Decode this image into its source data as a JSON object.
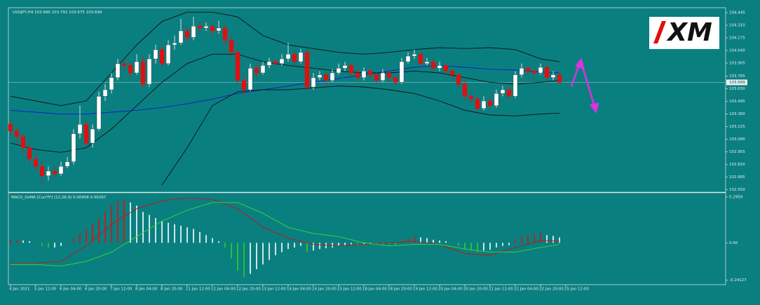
{
  "chart_data": {
    "type": "candlestick",
    "title": "USDJPY,H4",
    "header_values": [
      103.686,
      103.792,
      103.675,
      103.699
    ],
    "logo": "XM",
    "ylim": [
      102.54,
      104.49
    ],
    "yticks": [
      104.445,
      {
        "value": 104.31,
        "label": "104.310"
      },
      104.175,
      {
        "value": 104.04,
        "label": "104.040"
      },
      103.905,
      103.765,
      {
        "value": 103.63,
        "label": "103.630"
      },
      103.495,
      {
        "value": 103.36,
        "label": "103.360"
      },
      103.225,
      {
        "value": 103.09,
        "label": "103.090"
      },
      102.955,
      {
        "value": 102.82,
        "label": "102.820"
      },
      102.685,
      {
        "value": 102.55,
        "label": "102.550"
      }
    ],
    "last_price": 103.699,
    "up_color": "#ffffff",
    "down_color": "#e01010",
    "ohlc": [
      [
        103.25,
        103.3,
        103.12,
        103.18
      ],
      [
        103.18,
        103.22,
        103.05,
        103.12
      ],
      [
        103.12,
        103.15,
        102.95,
        103.0
      ],
      [
        103.0,
        103.05,
        102.82,
        102.88
      ],
      [
        102.88,
        102.95,
        102.75,
        102.8
      ],
      [
        102.8,
        102.85,
        102.6,
        102.7
      ],
      [
        102.7,
        102.8,
        102.65,
        102.75
      ],
      [
        102.75,
        102.8,
        102.68,
        102.72
      ],
      [
        102.72,
        102.85,
        102.7,
        102.8
      ],
      [
        102.8,
        102.9,
        102.78,
        102.85
      ],
      [
        102.85,
        103.2,
        102.82,
        103.15
      ],
      [
        103.15,
        103.45,
        103.1,
        103.25
      ],
      [
        103.25,
        103.3,
        103.0,
        103.05
      ],
      [
        103.05,
        103.25,
        103.0,
        103.2
      ],
      [
        103.2,
        103.6,
        103.18,
        103.55
      ],
      [
        103.55,
        103.68,
        103.5,
        103.62
      ],
      [
        103.62,
        103.8,
        103.58,
        103.75
      ],
      [
        103.75,
        103.95,
        103.72,
        103.9
      ],
      [
        103.9,
        103.95,
        103.82,
        103.88
      ],
      [
        103.88,
        103.92,
        103.75,
        103.8
      ],
      [
        103.8,
        104.0,
        103.78,
        103.92
      ],
      [
        103.92,
        103.98,
        103.62,
        103.68
      ],
      [
        103.68,
        104.0,
        103.65,
        103.95
      ],
      [
        103.95,
        104.1,
        103.9,
        104.05
      ],
      [
        104.05,
        104.08,
        103.85,
        103.9
      ],
      [
        103.9,
        104.15,
        103.88,
        104.1
      ],
      [
        104.1,
        104.2,
        104.05,
        104.12
      ],
      [
        104.12,
        104.38,
        104.1,
        104.25
      ],
      [
        104.25,
        104.28,
        104.12,
        104.18
      ],
      [
        104.18,
        104.4,
        104.15,
        104.3
      ],
      [
        104.3,
        104.35,
        104.22,
        104.28
      ],
      [
        104.28,
        104.34,
        104.25,
        104.3
      ],
      [
        104.3,
        104.32,
        104.2,
        104.25
      ],
      [
        104.25,
        104.36,
        104.22,
        104.28
      ],
      [
        104.28,
        104.32,
        104.1,
        104.15
      ],
      [
        104.15,
        104.2,
        103.98,
        104.02
      ],
      [
        104.02,
        104.05,
        103.68,
        103.72
      ],
      [
        103.72,
        103.78,
        103.55,
        103.62
      ],
      [
        103.62,
        103.9,
        103.6,
        103.85
      ],
      [
        103.85,
        103.9,
        103.75,
        103.8
      ],
      [
        103.8,
        103.92,
        103.78,
        103.88
      ],
      [
        103.88,
        103.96,
        103.85,
        103.92
      ],
      [
        103.92,
        103.95,
        103.86,
        103.9
      ],
      [
        103.9,
        104.0,
        103.88,
        103.95
      ],
      [
        103.95,
        104.12,
        103.92,
        104.0
      ],
      [
        104.0,
        104.04,
        103.88,
        103.92
      ],
      [
        103.92,
        104.06,
        103.9,
        104.02
      ],
      [
        104.02,
        104.05,
        103.6,
        103.65
      ],
      [
        103.65,
        103.8,
        103.62,
        103.75
      ],
      [
        103.75,
        103.82,
        103.72,
        103.78
      ],
      [
        103.78,
        103.8,
        103.68,
        103.72
      ],
      [
        103.72,
        103.84,
        103.7,
        103.8
      ],
      [
        103.8,
        103.9,
        103.78,
        103.85
      ],
      [
        103.85,
        103.92,
        103.82,
        103.88
      ],
      [
        103.88,
        103.9,
        103.76,
        103.8
      ],
      [
        103.8,
        103.84,
        103.7,
        103.75
      ],
      [
        103.75,
        103.86,
        103.72,
        103.82
      ],
      [
        103.82,
        103.85,
        103.74,
        103.78
      ],
      [
        103.78,
        103.8,
        103.68,
        103.72
      ],
      [
        103.72,
        103.84,
        103.7,
        103.8
      ],
      [
        103.8,
        103.82,
        103.7,
        103.75
      ],
      [
        103.75,
        103.78,
        103.66,
        103.7
      ],
      [
        103.7,
        103.96,
        103.68,
        103.92
      ],
      [
        103.92,
        104.02,
        103.9,
        103.98
      ],
      [
        103.98,
        104.05,
        103.95,
        104.0
      ],
      [
        104.0,
        104.02,
        103.86,
        103.9
      ],
      [
        103.9,
        103.96,
        103.88,
        103.92
      ],
      [
        103.92,
        103.94,
        103.82,
        103.85
      ],
      [
        103.85,
        103.92,
        103.82,
        103.88
      ],
      [
        103.88,
        103.9,
        103.78,
        103.82
      ],
      [
        103.82,
        103.85,
        103.74,
        103.78
      ],
      [
        103.78,
        103.8,
        103.64,
        103.68
      ],
      [
        103.68,
        103.72,
        103.5,
        103.55
      ],
      [
        103.55,
        103.6,
        103.48,
        103.52
      ],
      [
        103.52,
        103.55,
        103.38,
        103.42
      ],
      [
        103.42,
        103.55,
        103.4,
        103.5
      ],
      [
        103.5,
        103.54,
        103.42,
        103.45
      ],
      [
        103.45,
        103.62,
        103.43,
        103.58
      ],
      [
        103.58,
        103.66,
        103.55,
        103.62
      ],
      [
        103.62,
        103.65,
        103.52,
        103.55
      ],
      [
        103.55,
        103.82,
        103.53,
        103.78
      ],
      [
        103.78,
        103.9,
        103.75,
        103.85
      ],
      [
        103.85,
        103.88,
        103.78,
        103.82
      ],
      [
        103.82,
        103.86,
        103.76,
        103.8
      ],
      [
        103.8,
        103.9,
        103.78,
        103.86
      ],
      [
        103.86,
        103.88,
        103.72,
        103.75
      ],
      [
        103.75,
        103.82,
        103.72,
        103.78
      ],
      [
        103.78,
        103.8,
        103.68,
        103.7
      ]
    ],
    "x_labels": [
      "4 Jan 2021",
      "5 Jan 12:00",
      "6 Jan 04:00",
      "6 Jan 20:00",
      "7 Jan 12:00",
      "8 Jan 04:00",
      "8 Jan 20:00",
      "11 Jan 12:00",
      "12 Jan 04:00",
      "12 Jan 20:00",
      "13 Jan 12:00",
      "14 Jan 04:00",
      "14 Jan 20:00",
      "15 Jan 12:00",
      "18 Jan 04:00",
      "18 Jan 20:00",
      "19 Jan 12:00",
      "20 Jan 04:00",
      "20 Jan 20:00",
      "21 Jan 12:00",
      "22 Jan 04:00",
      "22 Jan 20:00",
      "25 Jan 12:00"
    ],
    "line_x": [
      0,
      4,
      8,
      12,
      16,
      20,
      24,
      28,
      32,
      36,
      40,
      44,
      48,
      52,
      56,
      60,
      64,
      68,
      72,
      76,
      80,
      84,
      87
    ],
    "lines": [
      {
        "color": "#0a1fd0",
        "values": [
          103.4,
          103.38,
          103.36,
          103.36,
          103.38,
          103.4,
          103.43,
          103.47,
          103.52,
          103.58,
          103.62,
          103.66,
          103.7,
          103.74,
          103.78,
          103.82,
          103.86,
          103.88,
          103.86,
          103.84,
          103.83,
          103.81,
          103.8
        ]
      },
      {
        "color": "#111111",
        "values": [
          103.55,
          103.5,
          103.45,
          103.5,
          103.8,
          104.1,
          104.35,
          104.45,
          104.45,
          104.4,
          104.2,
          104.1,
          104.06,
          104.02,
          104.0,
          104.02,
          104.05,
          104.07,
          104.06,
          104.07,
          104.05,
          103.95,
          103.92
        ]
      },
      {
        "color": "#111111",
        "values": [
          103.05,
          102.98,
          102.95,
          103.0,
          103.2,
          103.45,
          103.7,
          103.9,
          104.0,
          104.0,
          103.92,
          103.88,
          103.85,
          103.82,
          103.8,
          103.8,
          103.82,
          103.8,
          103.75,
          103.7,
          103.68,
          103.7,
          103.72
        ]
      },
      {
        "color": "#111111",
        "values": [
          null,
          null,
          null,
          null,
          null,
          null,
          102.6,
          103.0,
          103.45,
          103.6,
          103.62,
          103.62,
          103.64,
          103.66,
          103.65,
          103.62,
          103.58,
          103.5,
          103.4,
          103.35,
          103.34,
          103.36,
          103.37
        ]
      }
    ],
    "indicator": {
      "type": "histogram",
      "title": "MACD_OsMA [CurrTF] (12,26,9)",
      "header_values": [
        0.00958,
        0.00297
      ],
      "ylim": [
        -0.27,
        0.318
      ],
      "yticks": [
        0.2959,
        {
          "value": 0,
          "label": "0.00"
        },
        -0.24127
      ],
      "rise_color": "#e01010",
      "ease_color": "#ffffff",
      "fall_color": "#30d020",
      "values": [
        0.02,
        0.02,
        0.015,
        0.01,
        0.0,
        -0.02,
        -0.03,
        -0.03,
        -0.02,
        0.0,
        0.03,
        0.06,
        0.09,
        0.12,
        0.16,
        0.2,
        0.24,
        0.27,
        0.28,
        0.26,
        0.24,
        0.2,
        0.18,
        0.16,
        0.14,
        0.13,
        0.12,
        0.11,
        0.1,
        0.09,
        0.07,
        0.05,
        0.03,
        0.01,
        -0.03,
        -0.1,
        -0.18,
        -0.22,
        -0.2,
        -0.17,
        -0.14,
        -0.11,
        -0.08,
        -0.06,
        -0.04,
        -0.03,
        -0.02,
        -0.06,
        -0.05,
        -0.04,
        -0.035,
        -0.03,
        -0.02,
        -0.015,
        -0.01,
        -0.012,
        -0.01,
        -0.008,
        -0.01,
        -0.006,
        -0.008,
        -0.012,
        0.01,
        0.03,
        0.04,
        0.035,
        0.03,
        0.02,
        0.015,
        0.01,
        0.0,
        -0.02,
        -0.04,
        -0.05,
        -0.06,
        -0.05,
        -0.045,
        -0.03,
        -0.02,
        -0.015,
        0.02,
        0.04,
        0.05,
        0.06,
        0.065,
        0.05,
        0.045,
        0.035
      ],
      "lines": [
        {
          "color": "#d01010",
          "values": [
            -0.13,
            -0.13,
            -0.12,
            -0.02,
            0.12,
            0.22,
            0.27,
            0.29,
            0.28,
            0.22,
            0.1,
            0.03,
            -0.01,
            -0.02,
            -0.01,
            0.0,
            0.01,
            -0.01,
            -0.07,
            -0.08,
            -0.03,
            0.015,
            0.01
          ]
        },
        {
          "color": "#30e030",
          "values": [
            -0.14,
            -0.14,
            -0.15,
            -0.12,
            -0.06,
            0.04,
            0.14,
            0.21,
            0.26,
            0.26,
            0.19,
            0.1,
            0.06,
            0.04,
            0.0,
            -0.02,
            -0.01,
            -0.01,
            -0.04,
            -0.06,
            -0.06,
            -0.03,
            -0.01
          ]
        }
      ]
    }
  }
}
